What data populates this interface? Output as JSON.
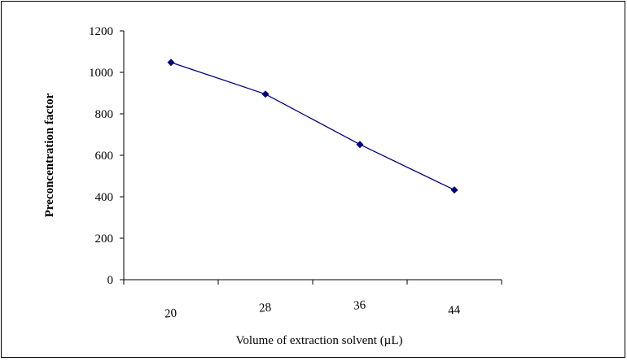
{
  "chart_data": {
    "type": "line",
    "title": "",
    "xlabel": "Volume of extraction solvent (µL)",
    "ylabel": "Preconcentration factor",
    "categories": [
      "20",
      "28",
      "36",
      "44"
    ],
    "series": [
      {
        "values": [
          1048,
          895,
          652,
          433
        ]
      }
    ],
    "ylim": [
      0,
      1200
    ],
    "yticks": [
      "0",
      "200",
      "400",
      "600",
      "800",
      "1000",
      "1200"
    ],
    "grid": false,
    "legend": "none",
    "colors": {
      "series": "#000080",
      "axis": "#000000"
    }
  }
}
